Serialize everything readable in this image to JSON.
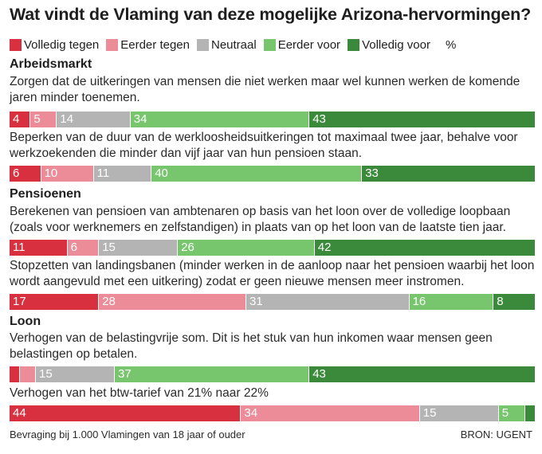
{
  "title": "Wat vindt de Vlaming van deze mogelijke Arizona-hervormingen?",
  "legend": {
    "items": [
      {
        "label": "Volledig tegen",
        "color": "#d9303f"
      },
      {
        "label": "Eerder tegen",
        "color": "#ec8c99"
      },
      {
        "label": "Neutraal",
        "color": "#b4b4b4"
      },
      {
        "label": "Eerder voor",
        "color": "#77c66d"
      },
      {
        "label": "Volledig voor",
        "color": "#3b8a3b"
      }
    ],
    "unit": "%"
  },
  "chart_data": {
    "type": "bar",
    "orientation": "horizontal-stacked-100",
    "title": "Wat vindt de Vlaming van deze mogelijke Arizona-hervormingen?",
    "series_names": [
      "Volledig tegen",
      "Eerder tegen",
      "Neutraal",
      "Eerder voor",
      "Volledig voor"
    ],
    "unit": "%",
    "sections": [
      {
        "name": "Arbeidsmarkt",
        "items": [
          {
            "question": "Zorgen dat de uitkeringen van mensen die niet werken maar wel kunnen werken de komende jaren minder toenemen.",
            "values": [
              4,
              5,
              14,
              34,
              43
            ],
            "labels": [
              "4",
              "5",
              "14",
              "34",
              "43"
            ]
          },
          {
            "question": "Beperken van de duur van de werkloosheidsuitkeringen tot maximaal twee jaar, behalve voor werkzoekenden die minder dan vijf jaar van hun pensioen staan.",
            "values": [
              6,
              10,
              11,
              40,
              33
            ],
            "labels": [
              "6",
              "10",
              "11",
              "40",
              "33"
            ]
          }
        ]
      },
      {
        "name": "Pensioenen",
        "items": [
          {
            "question": "Berekenen van pensioen van ambtenaren op basis van het loon over de volledige loopbaan (zoals voor werknemers en zelfstandigen) in plaats van op het loon van de laatste tien jaar.",
            "values": [
              11,
              6,
              15,
              26,
              42
            ],
            "labels": [
              "11",
              "6",
              "15",
              "26",
              "42"
            ]
          },
          {
            "question": "Stopzetten van landingsbanen (minder werken in de aanloop naar het pensioen waarbij het loon wordt aangevuld met een uitkering) zodat er geen nieuwe mensen meer instromen.",
            "values": [
              17,
              28,
              31,
              16,
              8
            ],
            "labels": [
              "17",
              "28",
              "31",
              "16",
              "8"
            ]
          }
        ]
      },
      {
        "name": "Loon",
        "items": [
          {
            "question": "Verhogen van de belastingvrije som. Dit is het stuk van hun inkomen waar mensen geen belastingen op betalen.",
            "values": [
              2,
              3,
              15,
              37,
              43
            ],
            "labels": [
              "",
              "",
              "15",
              "37",
              "43"
            ]
          },
          {
            "question": "Verhogen van het btw-tarief van 21% naar 22%",
            "values": [
              44,
              34,
              15,
              5,
              2
            ],
            "labels": [
              "44",
              "34",
              "15",
              "5",
              ""
            ]
          }
        ]
      }
    ]
  },
  "footer": {
    "note": "Bevraging bij 1.000 Vlamingen van 18 jaar of ouder",
    "source": "BRON: UGENT"
  }
}
